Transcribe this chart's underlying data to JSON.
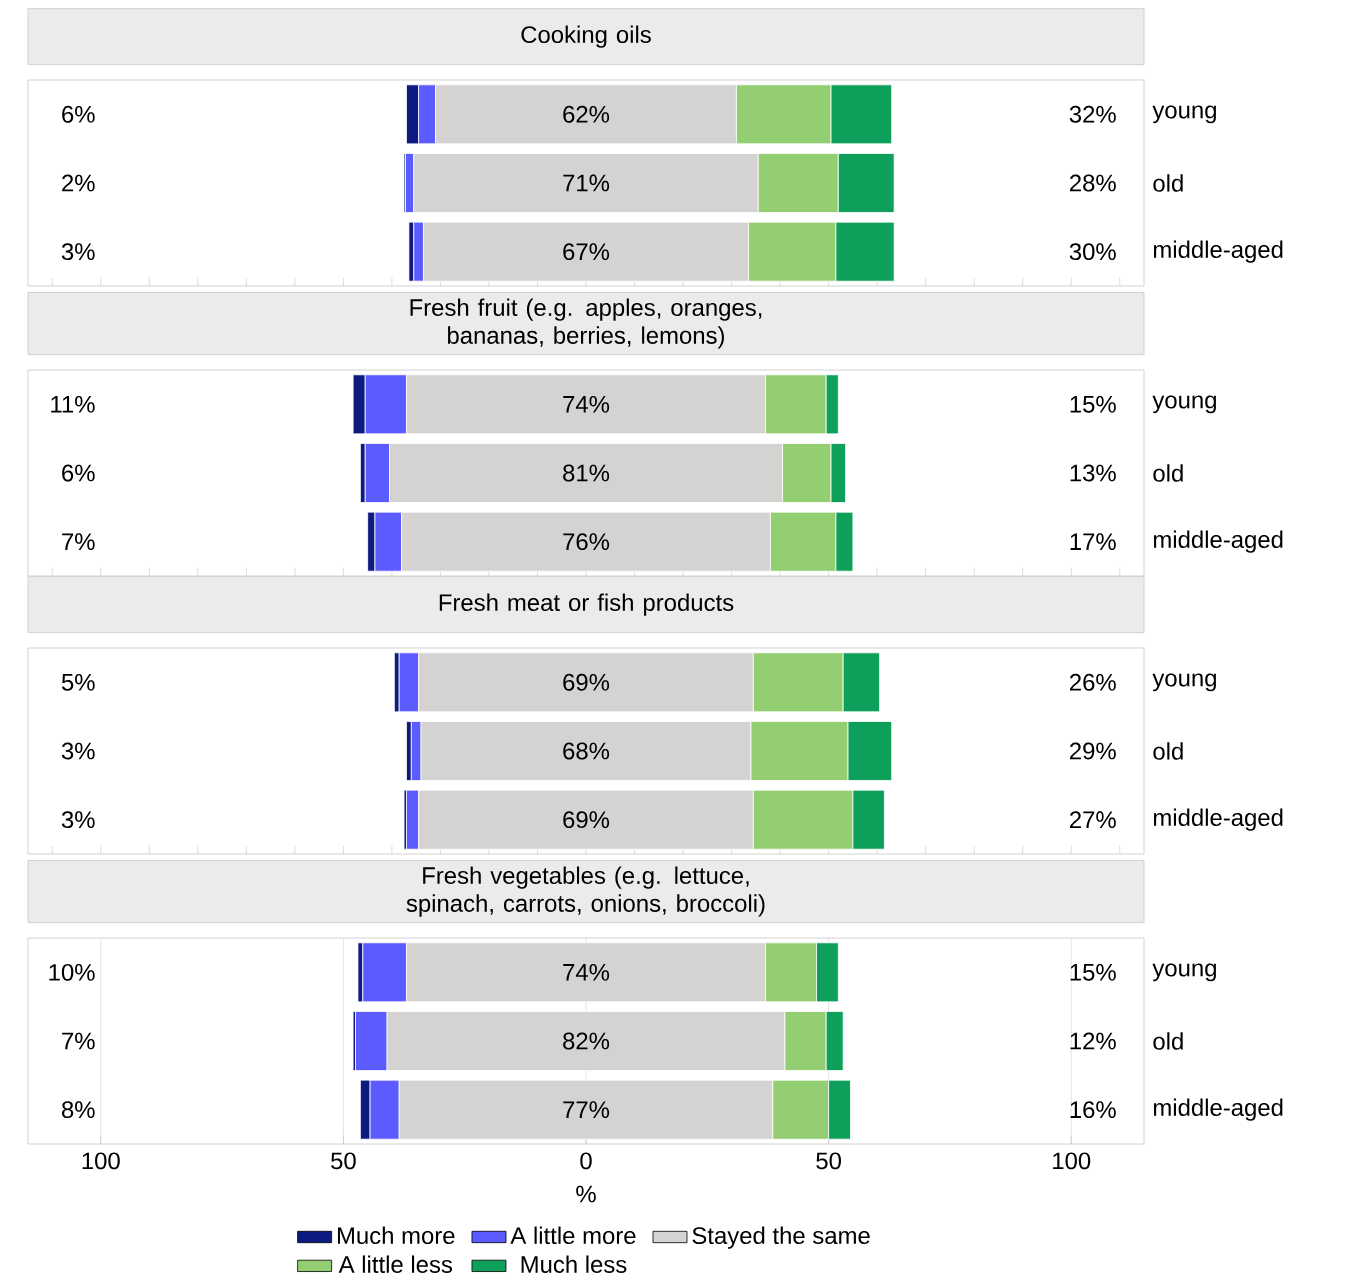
{
  "chart_data": [
    {
      "type": "bar",
      "orientation": "horizontal",
      "title": "Cooking oils",
      "categories": [
        "young",
        "old",
        "middle-aged"
      ],
      "xlim": [
        -115,
        115
      ],
      "tick_labels": "y",
      "annotations": [
        "6%",
        "2%",
        "3%",
        "32%",
        "28%",
        "30%"
      ],
      "series": [
        {
          "color": "#0d1a80",
          "base": [
            -37,
            -37.5,
            -36.5
          ],
          "values": [
            2.5,
            0.3,
            1
          ]
        },
        {
          "color": "#5b5bff",
          "base": [
            -34.5,
            -37.2,
            -35.5
          ],
          "values": [
            3.5,
            1.7,
            2
          ]
        },
        {
          "color": "#d4d3d2",
          "base": [
            -31,
            -35.5,
            -33.5
          ],
          "values": [
            62,
            71,
            67
          ],
          "value_labels": [
            "62%",
            "71%",
            "67%"
          ]
        },
        {
          "color": "#93cf72",
          "base": [
            31,
            35.5,
            33.5
          ],
          "values": [
            19.5,
            16.5,
            18
          ]
        },
        {
          "color": "#0ea05a",
          "base": [
            50.5,
            52,
            51.5
          ],
          "values": [
            12.5,
            11.5,
            12
          ]
        }
      ]
    },
    {
      "type": "bar",
      "orientation": "horizontal",
      "title": "Fresh fruit (e.g. apples, oranges, bananas, berries, lemons)",
      "categories": [
        "young",
        "old",
        "middle-aged"
      ],
      "xlim": [
        -115,
        115
      ],
      "tick_labels": "y",
      "annotations": [
        "11%",
        "6%",
        "7%",
        "15%",
        "13%",
        "17%"
      ],
      "series": [
        {
          "color": "#0d1a80",
          "base": [
            -48,
            -46.5,
            -45
          ],
          "values": [
            2.5,
            1,
            1.5
          ]
        },
        {
          "color": "#5b5bff",
          "base": [
            -45.5,
            -45.5,
            -43.5
          ],
          "values": [
            8.5,
            5,
            5.5
          ]
        },
        {
          "color": "#d4d3d2",
          "base": [
            -37,
            -40.5,
            -38
          ],
          "values": [
            74,
            81,
            76
          ],
          "value_labels": [
            "74%",
            "81%",
            "76%"
          ]
        },
        {
          "color": "#93cf72",
          "base": [
            37,
            40.5,
            38
          ],
          "values": [
            12.5,
            10,
            13.5
          ]
        },
        {
          "color": "#0ea05a",
          "base": [
            49.5,
            50.5,
            51.5
          ],
          "values": [
            2.5,
            3,
            3.5
          ]
        }
      ]
    },
    {
      "type": "bar",
      "orientation": "horizontal",
      "title": "Fresh meat or fish products",
      "categories": [
        "young",
        "old",
        "middle-aged"
      ],
      "xlim": [
        -115,
        115
      ],
      "tick_labels": "y",
      "annotations": [
        "5%",
        "3%",
        "3%",
        "26%",
        "29%",
        "27%"
      ],
      "series": [
        {
          "color": "#0d1a80",
          "base": [
            -39.5,
            -37,
            -37.5
          ],
          "values": [
            1,
            1,
            0.5
          ]
        },
        {
          "color": "#5b5bff",
          "base": [
            -38.5,
            -36,
            -37
          ],
          "values": [
            4,
            2,
            2.5
          ]
        },
        {
          "color": "#d4d3d2",
          "base": [
            -34.5,
            -34,
            -34.5
          ],
          "values": [
            69,
            68,
            69
          ],
          "value_labels": [
            "69%",
            "68%",
            "69%"
          ]
        },
        {
          "color": "#93cf72",
          "base": [
            34.5,
            34,
            34.5
          ],
          "values": [
            18.5,
            20,
            20.5
          ]
        },
        {
          "color": "#0ea05a",
          "base": [
            53,
            54,
            55
          ],
          "values": [
            7.5,
            9,
            6.5
          ]
        }
      ]
    },
    {
      "type": "bar",
      "orientation": "horizontal",
      "title": "Fresh vegetables (e.g. lettuce, spinach, carrots, onions, broccoli)",
      "categories": [
        "young",
        "old",
        "middle-aged"
      ],
      "xlim": [
        -115,
        115
      ],
      "xticks": [
        {
          "value": -100,
          "label": "100"
        },
        {
          "value": -50,
          "label": "50"
        },
        0,
        50,
        100
      ],
      "grid": "x",
      "xlabel": "%",
      "legend": "bottom",
      "annotations": [
        "10%",
        "7%",
        "8%",
        "15%",
        "12%",
        "16%"
      ],
      "series": [
        {
          "name": "Much more",
          "color": "#0d1a80",
          "base": [
            -47,
            -48,
            -46.5
          ],
          "values": [
            1,
            0.5,
            2
          ]
        },
        {
          "name": "A little more",
          "color": "#5b5bff",
          "base": [
            -46,
            -47.5,
            -44.5
          ],
          "values": [
            9,
            6.5,
            6
          ]
        },
        {
          "name": "Stayed the same",
          "color": "#d4d3d2",
          "base": [
            -37,
            -41,
            -38.5
          ],
          "values": [
            74,
            82,
            77
          ],
          "value_labels": [
            "74%",
            "82%",
            "77%"
          ]
        },
        {
          "name": "A little less",
          "color": "#93cf72",
          "base": [
            37,
            41,
            38.5
          ],
          "values": [
            10.5,
            8.5,
            11.5
          ]
        },
        {
          "name": "Much less",
          "color": "#0ea05a",
          "base": [
            47.5,
            49.5,
            50
          ],
          "values": [
            4.5,
            3.5,
            4.5
          ]
        }
      ]
    }
  ]
}
